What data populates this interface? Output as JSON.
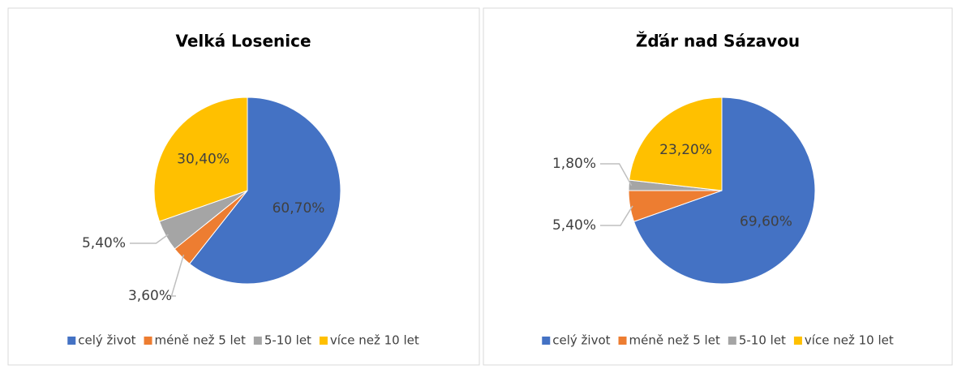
{
  "chart_data": [
    {
      "type": "pie",
      "title": "Velká Losenice",
      "categories": [
        "celý život",
        "méně než 5 let",
        "5-10 let",
        "více než 10 let"
      ],
      "values": [
        60.7,
        3.6,
        5.4,
        30.4
      ],
      "value_labels": [
        "60,70%",
        "3,60%",
        "5,40%",
        "30,40%"
      ],
      "colors": [
        "#4472c4",
        "#ed7d31",
        "#a5a5a5",
        "#ffc000"
      ]
    },
    {
      "type": "pie",
      "title": "Žďár nad Sázavou",
      "categories": [
        "celý život",
        "méně než 5 let",
        "5-10 let",
        "více než 10 let"
      ],
      "values": [
        69.6,
        5.4,
        1.8,
        23.2
      ],
      "value_labels": [
        "69,60%",
        "5,40%",
        "1,80%",
        "23,20%"
      ],
      "colors": [
        "#4472c4",
        "#ed7d31",
        "#a5a5a5",
        "#ffc000"
      ]
    }
  ]
}
